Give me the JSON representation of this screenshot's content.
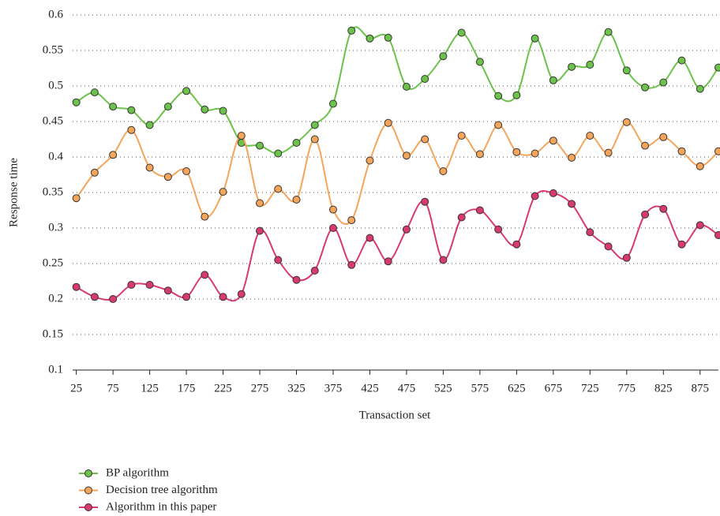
{
  "chart_data": {
    "type": "line",
    "x_label": "Transaction set",
    "y_label": "Response time",
    "x": [
      25,
      50,
      75,
      100,
      125,
      150,
      175,
      200,
      225,
      250,
      275,
      300,
      325,
      350,
      375,
      400,
      425,
      450,
      475,
      500,
      525,
      550,
      575,
      600,
      625,
      650,
      675,
      700,
      725,
      750,
      775,
      800,
      825,
      850,
      875,
      900
    ],
    "series": [
      {
        "name": "BP algorithm",
        "color": "#6cc24a",
        "values": [
          0.477,
          0.491,
          0.471,
          0.466,
          0.445,
          0.471,
          0.493,
          0.467,
          0.465,
          0.42,
          0.416,
          0.405,
          0.42,
          0.445,
          0.475,
          0.578,
          0.567,
          0.568,
          0.499,
          0.51,
          0.542,
          0.575,
          0.534,
          0.486,
          0.487,
          0.567,
          0.508,
          0.527,
          0.53,
          0.576,
          0.522,
          0.498,
          0.505,
          0.536,
          0.496,
          0.526
        ]
      },
      {
        "name": "Decision tree algorithm",
        "color": "#f5a55a",
        "values": [
          0.342,
          0.378,
          0.403,
          0.438,
          0.385,
          0.372,
          0.38,
          0.316,
          0.351,
          0.43,
          0.335,
          0.355,
          0.34,
          0.425,
          0.326,
          0.311,
          0.395,
          0.448,
          0.402,
          0.425,
          0.38,
          0.43,
          0.404,
          0.445,
          0.407,
          0.405,
          0.423,
          0.399,
          0.43,
          0.406,
          0.449,
          0.416,
          0.428,
          0.408,
          0.387,
          0.408
        ]
      },
      {
        "name": "Algorithm in this paper",
        "color": "#d83a70",
        "values": [
          0.217,
          0.203,
          0.2,
          0.22,
          0.22,
          0.212,
          0.203,
          0.234,
          0.203,
          0.207,
          0.296,
          0.255,
          0.227,
          0.24,
          0.3,
          0.248,
          0.286,
          0.253,
          0.298,
          0.337,
          0.255,
          0.315,
          0.325,
          0.298,
          0.277,
          0.345,
          0.349,
          0.334,
          0.294,
          0.274,
          0.258,
          0.319,
          0.327,
          0.277,
          0.304,
          0.29
        ]
      }
    ],
    "xlim": [
      20,
      900
    ],
    "xticks": [
      25,
      75,
      125,
      175,
      225,
      275,
      325,
      375,
      425,
      475,
      525,
      575,
      625,
      675,
      725,
      775,
      825,
      875
    ],
    "ylim": [
      0.1,
      0.6
    ],
    "yticks": [
      0.1,
      0.15,
      0.2,
      0.25,
      0.3,
      0.35,
      0.4,
      0.45,
      0.5,
      0.55,
      0.6
    ],
    "grid": true,
    "legend": "bottom-left"
  }
}
